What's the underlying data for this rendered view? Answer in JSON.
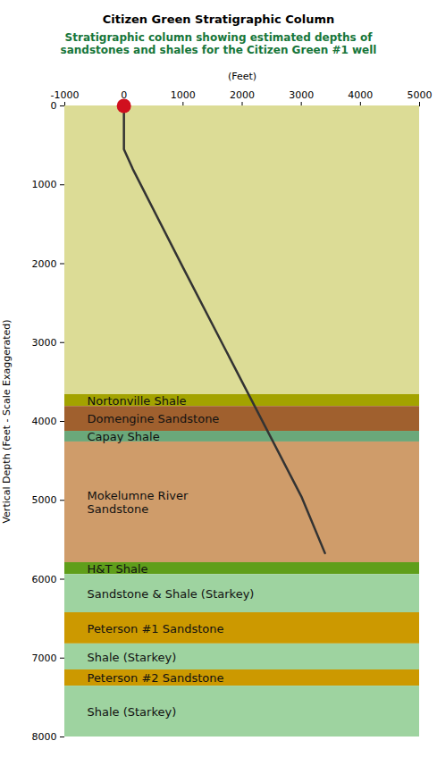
{
  "chart_data": {
    "type": "stratigraphic_column",
    "title": "Citizen Green Stratigraphic Column",
    "subtitle": "Stratigraphic column showing estimated depths of sandstones and shales for the Citizen Green #1 well",
    "x_label": "(Feet)",
    "y_label": "Vertical Depth (Feet - Scale Exaggerated)",
    "xlim": [
      -1000,
      5000
    ],
    "xticks": [
      -1000,
      0,
      1000,
      2000,
      3000,
      4000,
      5000
    ],
    "ylim": [
      0,
      8000
    ],
    "yticks": [
      0,
      1000,
      2000,
      3000,
      4000,
      5000,
      6000,
      7000,
      8000
    ],
    "grid": false,
    "layers": [
      {
        "top": 0,
        "bottom": 3660,
        "color": "#dcdc96"
      },
      {
        "name": "Nortonville Shale",
        "top": 3660,
        "bottom": 3810,
        "color": "#a3a300"
      },
      {
        "name": "Domengine Sandstone",
        "top": 3810,
        "bottom": 4125,
        "color": "#a0602e"
      },
      {
        "name": "Capay Shale",
        "top": 4125,
        "bottom": 4260,
        "color": "#6aa87a"
      },
      {
        "name": "Mokelumne River\nSandstone",
        "top": 4260,
        "bottom": 5790,
        "color": "#cf9c6a"
      },
      {
        "name": "H&T Shale",
        "top": 5790,
        "bottom": 5940,
        "color": "#5f9e1a"
      },
      {
        "name": "Sandstone & Shale (Starkey)",
        "top": 5940,
        "bottom": 6425,
        "color": "#9ed3a0"
      },
      {
        "name": "Peterson #1 Sandstone",
        "top": 6425,
        "bottom": 6820,
        "color": "#cc9900"
      },
      {
        "name": "Shale (Starkey)",
        "top": 6820,
        "bottom": 7150,
        "color": "#9ed3a0"
      },
      {
        "name": "Peterson #2 Sandstone",
        "top": 7150,
        "bottom": 7355,
        "color": "#cc9900"
      },
      {
        "name": "Shale (Starkey)",
        "top": 7355,
        "bottom": 8000,
        "color": "#9ed3a0"
      }
    ],
    "series": [
      {
        "type": "line",
        "color": "#333333",
        "line_style": "solid",
        "x": [
          0,
          0,
          150,
          1000,
          2000,
          3000,
          3400
        ],
        "values": [
          0,
          550,
          800,
          2050,
          3500,
          4950,
          5670
        ]
      },
      {
        "type": "scatter",
        "color": "#d0101e",
        "marker": "circle",
        "x": [
          0
        ],
        "values": [
          0
        ]
      }
    ]
  }
}
